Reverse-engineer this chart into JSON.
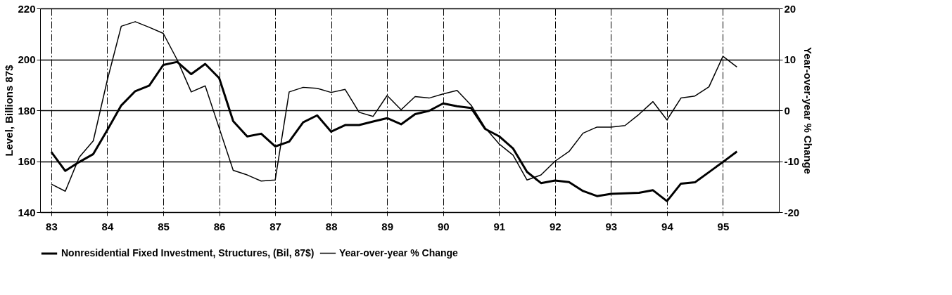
{
  "chart_data": {
    "type": "line",
    "x": [
      83.0,
      83.25,
      83.5,
      83.75,
      84.0,
      84.25,
      84.5,
      84.75,
      85.0,
      85.25,
      85.5,
      85.75,
      86.0,
      86.25,
      86.5,
      86.75,
      87.0,
      87.25,
      87.5,
      87.75,
      88.0,
      88.25,
      88.5,
      88.75,
      89.0,
      89.25,
      89.5,
      89.75,
      90.0,
      90.25,
      90.5,
      90.75,
      91.0,
      91.25,
      91.5,
      91.75,
      92.0,
      92.25,
      92.5,
      92.75,
      93.0,
      93.25,
      93.5,
      93.75,
      94.0,
      94.25,
      94.5,
      94.75,
      95.0,
      95.25
    ],
    "series": [
      {
        "name": "Nonresidential Fixed Investment, Structures, (Bil, 87$)",
        "color": "#000000",
        "values": [
          163.6,
          156.2,
          159.7,
          162.8,
          172.2,
          181.9,
          187.5,
          189.7,
          197.8,
          199.0,
          194.2,
          198.2,
          192.6,
          175.7,
          169.7,
          170.8,
          165.8,
          167.7,
          175.3,
          178.0,
          171.6,
          174.2,
          174.2,
          175.6,
          176.9,
          174.5,
          178.5,
          179.8,
          182.7,
          181.6,
          180.9,
          172.7,
          169.8,
          165.0,
          155.8,
          151.4,
          152.4,
          151.8,
          148.3,
          146.3,
          147.2,
          147.4,
          147.6,
          148.6,
          144.3,
          151.2,
          151.7,
          155.7,
          159.7,
          163.8
        ]
      },
      {
        "name": "Year-over-year % Change",
        "color": "#000000",
        "axis": "y2",
        "values": [
          -14.5,
          -15.9,
          -9.2,
          -6.0,
          5.9,
          16.5,
          17.4,
          16.3,
          15.1,
          9.9,
          3.6,
          4.8,
          -3.5,
          -11.8,
          -12.7,
          -13.9,
          -13.7,
          3.6,
          4.5,
          4.3,
          3.5,
          4.1,
          -0.4,
          -1.2,
          2.9,
          0.1,
          2.7,
          2.4,
          3.2,
          3.9,
          1.0,
          -3.4,
          -6.6,
          -8.8,
          -13.7,
          -12.7,
          -10.0,
          -8.1,
          -4.5,
          -3.3,
          -3.3,
          -3.0,
          -0.8,
          1.7,
          -1.9,
          2.4,
          2.8,
          4.6,
          10.6,
          8.5
        ]
      }
    ],
    "ylabel": "Level, Billions 87$",
    "y2label": "Year-over-year % Change",
    "xlim": [
      82.8,
      96.0
    ],
    "xticks": [
      83,
      84,
      85,
      86,
      87,
      88,
      89,
      90,
      91,
      92,
      93,
      94,
      95
    ],
    "ylim": [
      140,
      220
    ],
    "yticks": [
      140,
      160,
      180,
      200,
      220
    ],
    "y2lim": [
      -20,
      20
    ],
    "y2ticks": [
      -20,
      -10,
      0,
      10,
      20
    ],
    "grid": true,
    "legend": "bottom left",
    "marker": "none",
    "line_style": "solid"
  }
}
